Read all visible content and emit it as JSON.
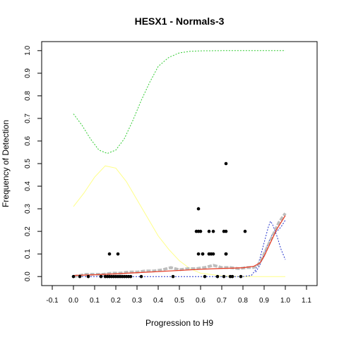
{
  "chart_data": {
    "type": "scatter",
    "title": "HESX1 - Normals-3",
    "xlabel": "Progression to H9",
    "ylabel": "Frequency of Detection",
    "xlim": [
      -0.15,
      1.15
    ],
    "ylim": [
      -0.04,
      1.04
    ],
    "x_ticks": [
      "-0.1",
      "0.0",
      "0.1",
      "0.2",
      "0.3",
      "0.4",
      "0.5",
      "0.6",
      "0.7",
      "0.8",
      "0.9",
      "1.0",
      "1.1"
    ],
    "y_ticks": [
      "0.0",
      "0.1",
      "0.2",
      "0.3",
      "0.4",
      "0.5",
      "0.6",
      "0.7",
      "0.8",
      "0.9",
      "1.0"
    ],
    "colors": {
      "points": "#000000",
      "gray_trace": "#bdbdbd",
      "red_fit": "#e8422b",
      "green_band": "#33cc33",
      "yellow_band": "#ffff88",
      "blue_dotted": "#2233cc"
    },
    "series": [
      {
        "kind": "points",
        "x": [
          0.0,
          0.03,
          0.07,
          0.13,
          0.15,
          0.16,
          0.17,
          0.18,
          0.19,
          0.2,
          0.21,
          0.22,
          0.23,
          0.24,
          0.25,
          0.26,
          0.27,
          0.32,
          0.47,
          0.17,
          0.21,
          0.58,
          0.59,
          0.6,
          0.61,
          0.64,
          0.65,
          0.66,
          0.71,
          0.72,
          0.72,
          0.72,
          0.81,
          0.59,
          0.64,
          0.72,
          0.61,
          0.64,
          0.65,
          0.72,
          0.62,
          0.68,
          0.71,
          0.74,
          0.75,
          0.79,
          0.59,
          0.66
        ],
        "y": [
          0.0,
          0.0,
          0.0,
          0.0,
          0.0,
          0.0,
          0.0,
          0.0,
          0.0,
          0.0,
          0.0,
          0.0,
          0.0,
          0.0,
          0.0,
          0.0,
          0.0,
          0.0,
          0.0,
          0.1,
          0.1,
          0.2,
          0.2,
          0.2,
          0.1,
          0.1,
          0.1,
          0.2,
          0.2,
          0.5,
          0.1,
          0.2,
          0.2,
          0.3,
          0.2,
          0.1,
          0.1,
          0.1,
          0.1,
          0.1,
          0.0,
          0.0,
          0.0,
          0.0,
          0.0,
          0.0,
          0.1,
          0.1
        ]
      },
      {
        "kind": "gray_trace",
        "x": [
          0.0,
          0.03,
          0.06,
          0.1,
          0.14,
          0.18,
          0.22,
          0.26,
          0.3,
          0.34,
          0.38,
          0.42,
          0.46,
          0.5,
          0.54,
          0.58,
          0.62,
          0.66,
          0.7,
          0.74,
          0.78,
          0.82,
          0.85,
          0.87,
          0.89,
          0.91,
          0.93,
          0.95,
          0.97,
          1.0
        ],
        "y": [
          0.0,
          0.005,
          0.01,
          0.01,
          0.01,
          0.015,
          0.015,
          0.02,
          0.02,
          0.025,
          0.025,
          0.03,
          0.04,
          0.03,
          0.035,
          0.035,
          0.04,
          0.05,
          0.04,
          0.04,
          0.035,
          0.04,
          0.04,
          0.05,
          0.08,
          0.12,
          0.16,
          0.2,
          0.24,
          0.28
        ]
      },
      {
        "kind": "red_fit",
        "x": [
          0.0,
          0.1,
          0.2,
          0.3,
          0.4,
          0.5,
          0.6,
          0.7,
          0.75,
          0.8,
          0.85,
          0.88,
          0.9,
          0.92,
          0.94,
          0.96,
          0.98,
          1.0
        ],
        "y": [
          0.005,
          0.008,
          0.012,
          0.017,
          0.022,
          0.027,
          0.032,
          0.036,
          0.037,
          0.039,
          0.045,
          0.06,
          0.09,
          0.13,
          0.17,
          0.21,
          0.24,
          0.27
        ]
      },
      {
        "kind": "green_band",
        "x": [
          0.0,
          0.04,
          0.08,
          0.12,
          0.16,
          0.2,
          0.24,
          0.28,
          0.32,
          0.36,
          0.4,
          0.45,
          0.5,
          0.55,
          0.6,
          0.7,
          0.8,
          0.9,
          1.0
        ],
        "y": [
          0.72,
          0.67,
          0.61,
          0.56,
          0.545,
          0.56,
          0.61,
          0.69,
          0.78,
          0.86,
          0.93,
          0.97,
          0.99,
          0.997,
          0.999,
          1.0,
          1.0,
          1.0,
          1.0
        ]
      },
      {
        "kind": "yellow_band",
        "x": [
          0.0,
          0.05,
          0.1,
          0.15,
          0.2,
          0.25,
          0.3,
          0.35,
          0.4,
          0.45,
          0.5,
          0.55,
          0.6,
          0.7,
          0.8,
          0.9,
          1.0
        ],
        "y": [
          0.31,
          0.37,
          0.44,
          0.49,
          0.48,
          0.42,
          0.34,
          0.26,
          0.18,
          0.12,
          0.07,
          0.035,
          0.015,
          0.003,
          0.0,
          0.0,
          0.0
        ]
      },
      {
        "kind": "blue_dotted",
        "x": [
          0.0,
          0.2,
          0.4,
          0.6,
          0.8,
          0.84,
          0.86,
          0.88,
          0.9,
          0.92,
          0.93,
          0.94,
          0.96,
          0.98,
          1.0
        ],
        "y": [
          0.0,
          0.0,
          0.0,
          0.0,
          0.0,
          0.005,
          0.03,
          0.08,
          0.15,
          0.22,
          0.245,
          0.23,
          0.18,
          0.12,
          0.075
        ]
      },
      {
        "kind": "blue_dotted",
        "x": [
          0.86,
          0.88,
          0.9,
          0.92,
          0.94,
          0.96,
          0.98,
          1.0
        ],
        "y": [
          0.02,
          0.05,
          0.1,
          0.15,
          0.19,
          0.2,
          0.22,
          0.25
        ]
      }
    ]
  }
}
